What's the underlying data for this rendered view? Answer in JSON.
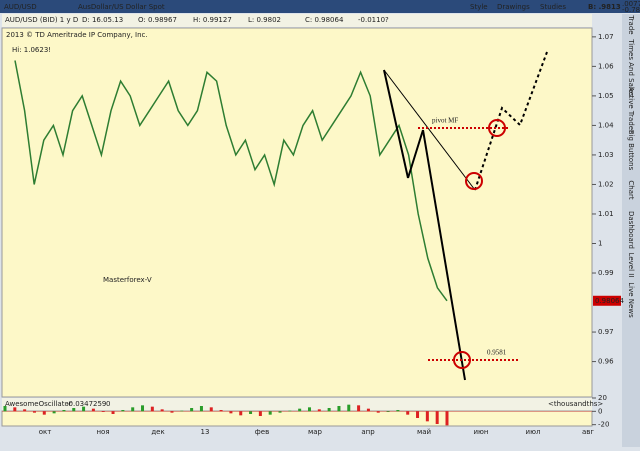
{
  "ui": {
    "symbol": "AUD/USD",
    "description": "AusDollar/US Dollar Spot",
    "menu": [
      "Style",
      "Drawings",
      "Studies"
    ],
    "bid": "B: .9813",
    "change": ".00773",
    "change_pct": "-0.78%",
    "info": [
      "AUD/USD (BID) 1 y D",
      "D: 16.05.13",
      "O: 0.98967",
      "H: 0.99127",
      "L: 0.9802",
      "C: 0.98064",
      "-0.0110?"
    ],
    "copyright": "2013 © TD Ameritrade IP Company, Inc.",
    "osc_header": [
      "AwesomeOscillator",
      "-0.0347259",
      "0",
      "<thousandths>"
    ],
    "tabs": [
      "Trade",
      "Times And Sales",
      "Active Trader",
      "Big Buttons",
      "Chart",
      "Dashboard",
      "Level II",
      "Live News"
    ],
    "months": [
      "окт",
      "ноя",
      "дек",
      "13",
      "фев",
      "мар",
      "апр",
      "май",
      "июн",
      "июл",
      "авг"
    ]
  },
  "chart_data": [
    {
      "type": "line",
      "color": "#2e7d32",
      "values": [
        1.062,
        1.045,
        1.02,
        1.035,
        1.04,
        1.03,
        1.045,
        1.05,
        1.04,
        1.03,
        1.045,
        1.055,
        1.05,
        1.04,
        1.045,
        1.05,
        1.055,
        1.045,
        1.04,
        1.045,
        1.058,
        1.055,
        1.04,
        1.03,
        1.035,
        1.025,
        1.03,
        1.02,
        1.035,
        1.03,
        1.04,
        1.045,
        1.035,
        1.04,
        1.045,
        1.05,
        1.058,
        1.05,
        1.03,
        1.035,
        1.04,
        1.03,
        1.01,
        0.995,
        0.985,
        0.9806
      ],
      "ylim": [
        0.948,
        1.073
      ],
      "yticks": [
        1.07,
        1.06,
        1.05,
        1.04,
        1.03,
        1.02,
        1.01,
        1,
        0.99,
        0.97,
        0.96
      ],
      "annotations": [
        "Hi: 1.0623!",
        "Masterforex-V",
        "pivot MF",
        "0.9581"
      ],
      "price_tag": "0.98064"
    },
    {
      "type": "bar",
      "values": [
        8,
        6,
        3,
        -2,
        -5,
        -3,
        2,
        5,
        7,
        4,
        -1,
        -4,
        2,
        6,
        9,
        7,
        3,
        -2,
        1,
        5,
        8,
        6,
        2,
        -3,
        -6,
        -4,
        -7,
        -5,
        -2,
        1,
        4,
        6,
        3,
        5,
        8,
        10,
        9,
        4,
        -2,
        -1,
        2,
        -5,
        -10,
        -15,
        -19,
        -21
      ],
      "ylim": [
        -22,
        20
      ],
      "yticks": [
        20,
        0,
        -20
      ]
    }
  ]
}
